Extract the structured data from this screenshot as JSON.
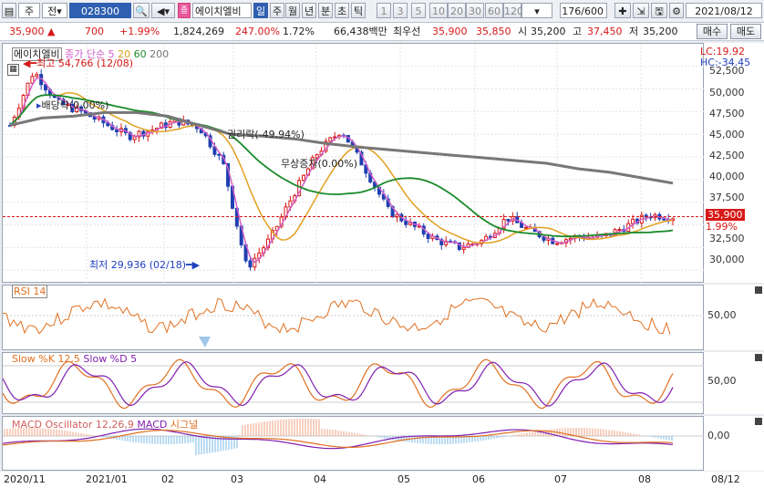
{
  "toolbar": {
    "market": "주",
    "type": "전",
    "code": "028300",
    "stock_name": "에이치엘비",
    "periods": [
      "일",
      "주",
      "월",
      "년",
      "분",
      "초",
      "틱"
    ],
    "active_period": "일",
    "intervals": [
      "1",
      "3",
      "5",
      "10",
      "20",
      "30",
      "60",
      "120"
    ],
    "counter": "176/600",
    "date": "2021/08/12"
  },
  "quote": {
    "price": "35,900",
    "change": "700",
    "pct": "+1.99%",
    "volume": "1,824,269",
    "vol_ratio": "247.00%",
    "turnover": "1.72%",
    "amount": "66,438백만",
    "ask_label": "최우선",
    "ask": "35,900",
    "bid": "35,850",
    "open_label": "시",
    "open": "35,200",
    "high_label": "고",
    "high": "37,450",
    "low_label": "저",
    "low": "35,200",
    "buy": "매수",
    "sell": "매도"
  },
  "main_chart": {
    "legend_name": "에이치엘비",
    "legend_ma": "종가 단순",
    "ma_periods": [
      "5",
      "20",
      "60",
      "200"
    ],
    "ma_colors": [
      "#d05fc8",
      "#e0a020",
      "#1a8a2a",
      "#777777"
    ],
    "lc": "LC:19.92",
    "hc": "HC:-34.45",
    "max_label": "최고 54,766 (12/08)",
    "min_label": "최저 29,936 (02/18)",
    "ann1": "배당락(0.00%)",
    "ann2": "권리락(-49.94%)",
    "ann3": "무상증자(0.00%)",
    "current_price": "35,900",
    "current_pct": "1.99%",
    "y_ticks": [
      "52,500",
      "50,000",
      "47,500",
      "45,000",
      "42,500",
      "40,000",
      "37,500",
      "32,500",
      "30,000"
    ]
  },
  "chart_data": {
    "type": "line",
    "x_labels": [
      "2020/11",
      "2021/01",
      "02",
      "03",
      "04",
      "05",
      "06",
      "07",
      "08",
      "08/12"
    ],
    "ylim": [
      28500,
      55000
    ],
    "series": [
      {
        "name": "종가",
        "color": "#2040c0",
        "values": [
          46000,
          52000,
          48500,
          47500,
          46200,
          44800,
          45500,
          46500,
          45800,
          41800,
          30200,
          33500,
          38500,
          43000,
          45500,
          41200,
          36500,
          34900,
          33300,
          32500,
          33300,
          35800,
          34300,
          33200,
          33700,
          33600,
          34800,
          36100,
          35900
        ]
      },
      {
        "name": "200",
        "color": "#777777",
        "values": [
          46000,
          46800,
          47000,
          47400,
          47400,
          47000,
          46000,
          45000,
          44800,
          44500,
          44000,
          43600,
          43300,
          43000,
          42700,
          42400,
          42100,
          41800,
          41200,
          40800,
          40200,
          39600
        ]
      }
    ]
  },
  "rsi": {
    "label": "RSI 14",
    "tick": "50,00"
  },
  "slow": {
    "label_k": "Slow %K 12,5",
    "label_d": "Slow %D 5",
    "tick": "50,00"
  },
  "macd": {
    "label_osc": "MACD Oscillator 12,26,9",
    "label_macd": "MACD",
    "label_sig": "시그널",
    "tick": "0,00"
  }
}
